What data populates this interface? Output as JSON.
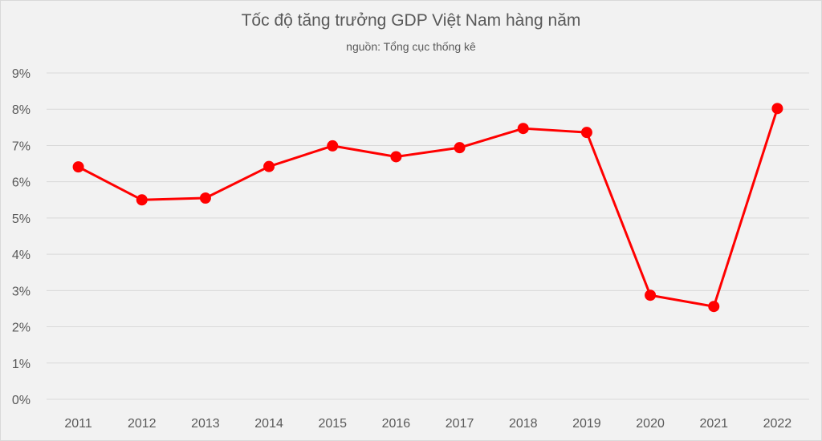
{
  "chart_data": {
    "type": "line",
    "title": "Tốc độ tăng trưởng GDP Việt Nam hàng năm",
    "subtitle": "nguồn: Tổng cục thống kê",
    "xlabel": "",
    "ylabel": "",
    "categories": [
      "2011",
      "2012",
      "2013",
      "2014",
      "2015",
      "2016",
      "2017",
      "2018",
      "2019",
      "2020",
      "2021",
      "2022"
    ],
    "series": [
      {
        "values": [
          6.41,
          5.5,
          5.55,
          6.42,
          6.99,
          6.69,
          6.94,
          7.47,
          7.36,
          2.87,
          2.56,
          8.02
        ]
      }
    ],
    "y_ticks": [
      "0%",
      "1%",
      "2%",
      "3%",
      "4%",
      "5%",
      "6%",
      "7%",
      "8%",
      "9%"
    ],
    "ylim": [
      0,
      9
    ],
    "grid": true,
    "legend": "none",
    "line_color": "#ff0000"
  }
}
